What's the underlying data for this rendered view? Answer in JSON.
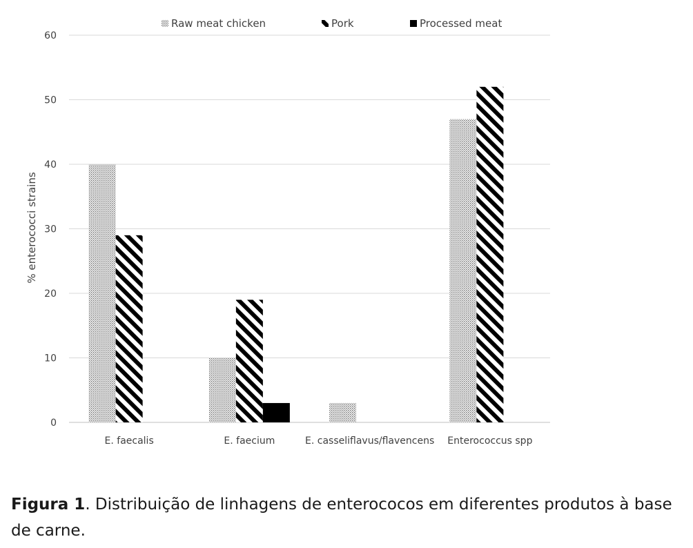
{
  "chart_data": {
    "type": "bar",
    "categories": [
      "E. faecalis",
      "E. faecium",
      "E. casseliflavus/flavencens",
      "Enterococcus spp"
    ],
    "series": [
      {
        "name": "Raw meat chicken",
        "values": [
          40,
          10,
          3,
          47
        ],
        "pattern": "dotted",
        "color": "#c8c8c8"
      },
      {
        "name": "Pork",
        "values": [
          29,
          19,
          0,
          52
        ],
        "pattern": "diagonal-stripes",
        "color": "#000000"
      },
      {
        "name": "Processed meat",
        "values": [
          0,
          3,
          0,
          0
        ],
        "pattern": "solid",
        "color": "#000000"
      }
    ],
    "title": "",
    "xlabel": "",
    "ylabel": "% enterococci strains",
    "ylim": [
      0,
      60
    ],
    "yticks": [
      0,
      10,
      20,
      30,
      40,
      50,
      60
    ],
    "grid": true,
    "legend_position": "top"
  },
  "caption": {
    "label": "Figura 1",
    "text": ". Distribuição de linhagens de enterococos em diferentes produtos à base de carne."
  }
}
